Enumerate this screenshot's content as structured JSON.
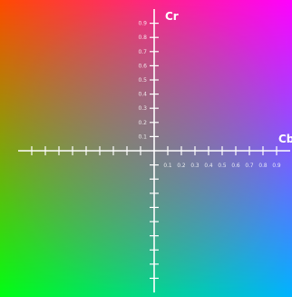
{
  "chart_data": {
    "type": "heatmap",
    "title": "",
    "xlabel": "Cb",
    "ylabel": "Cr",
    "xlim": [
      -1,
      1
    ],
    "ylim": [
      -1,
      1
    ],
    "grid": false,
    "x_tick_labels": [
      "0.1",
      "0.2",
      "0.3",
      "0.4",
      "0.5",
      "0.6",
      "0.7",
      "0.8",
      "0.9"
    ],
    "y_tick_labels": [
      "0.1",
      "0.2",
      "0.3",
      "0.4",
      "0.5",
      "0.6",
      "0.7",
      "0.8",
      "0.9"
    ],
    "corner_colors": {
      "top_left": "#ff4a00",
      "top_right": "#ff00ff",
      "bottom_left": "#00ff14",
      "bottom_right": "#00b4ff",
      "center": "#808080"
    },
    "axis_color": "#ffffff"
  }
}
